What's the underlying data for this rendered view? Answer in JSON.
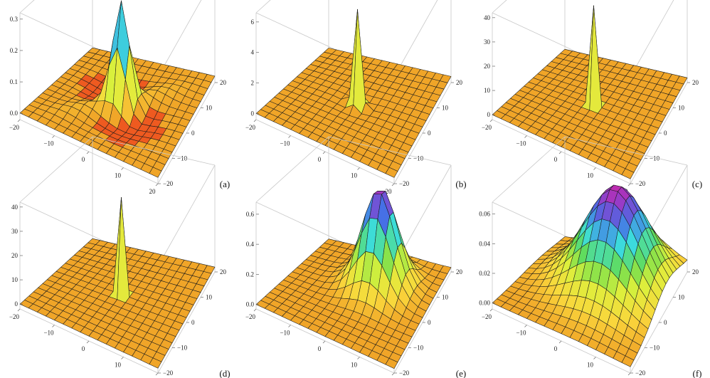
{
  "chart_data": [
    {
      "type": "surface3d",
      "panel_label": "(a)",
      "x_range": [
        -20,
        20
      ],
      "y_range": [
        -20,
        20
      ],
      "z_ticks": [
        "0.0",
        "0.1",
        "0.2",
        "0.3"
      ],
      "z_range": [
        -0.02,
        0.32
      ],
      "x_ticks": [
        "-20",
        "-10",
        "0",
        "10",
        "20"
      ],
      "y_ticks": [
        "-20",
        "-10",
        "0",
        "10",
        "20"
      ],
      "surface": {
        "kind": "dipole",
        "peak": 0.32,
        "width": 2.5,
        "dip": -0.025,
        "dip_width": 6
      }
    },
    {
      "type": "surface3d",
      "panel_label": "(b)",
      "x_range": [
        -20,
        20
      ],
      "y_range": [
        -20,
        20
      ],
      "z_ticks": [
        "0",
        "2",
        "4",
        "6"
      ],
      "z_range": [
        -0.4,
        6.6
      ],
      "x_ticks": [
        "-20",
        "-10",
        "0",
        "10",
        "20"
      ],
      "y_ticks": [
        "-20",
        "-10",
        "0",
        "10",
        "20"
      ],
      "surface": {
        "kind": "spike",
        "peak": 6.5,
        "width": 1.1,
        "dip": -0.3,
        "dip_width": 3
      }
    },
    {
      "type": "surface3d",
      "panel_label": "(c)",
      "x_range": [
        -20,
        20
      ],
      "y_range": [
        -20,
        20
      ],
      "z_ticks": [
        "0",
        "10",
        "20",
        "30",
        "40"
      ],
      "z_range": [
        -2,
        42
      ],
      "x_ticks": [
        "-20",
        "-10",
        "0",
        "10",
        "20"
      ],
      "y_ticks": [
        "-20",
        "-10",
        "0",
        "10",
        "20"
      ],
      "surface": {
        "kind": "spike",
        "peak": 41,
        "width": 0.7,
        "dip": 0,
        "dip_width": 2
      }
    },
    {
      "type": "surface3d",
      "panel_label": "(d)",
      "x_range": [
        -20,
        20
      ],
      "y_range": [
        -20,
        20
      ],
      "z_ticks": [
        "0",
        "10",
        "20",
        "30",
        "40"
      ],
      "z_range": [
        -2,
        42
      ],
      "x_ticks": [
        "-20",
        "-10",
        "0",
        "10",
        "20"
      ],
      "y_ticks": [
        "-20",
        "-10",
        "0",
        "10",
        "20"
      ],
      "surface": {
        "kind": "spike",
        "peak": 40,
        "width": 0.7,
        "dip": 0,
        "dip_width": 2
      }
    },
    {
      "type": "surface3d",
      "panel_label": "(e)",
      "x_range": [
        -20,
        20
      ],
      "y_range": [
        -20,
        20
      ],
      "z_ticks": [
        "0.0",
        "0.2",
        "0.4",
        "0.6"
      ],
      "z_range": [
        -0.03,
        0.68
      ],
      "x_ticks": [
        "-20",
        "-10",
        "0",
        "10",
        "20"
      ],
      "y_ticks": [
        "-20",
        "-10",
        "0",
        "10",
        "20"
      ],
      "surface": {
        "kind": "lump",
        "peak": 0.66,
        "width": 5,
        "dip": 0,
        "dip_width": 8
      }
    },
    {
      "type": "surface3d",
      "panel_label": "(f)",
      "x_range": [
        -20,
        20
      ],
      "y_range": [
        -20,
        20
      ],
      "z_ticks": [
        "0.00",
        "0.02",
        "0.04",
        "0.06"
      ],
      "z_range": [
        -0.004,
        0.068
      ],
      "x_ticks": [
        "-20",
        "-10",
        "0",
        "10",
        "20"
      ],
      "y_ticks": [
        "-20",
        "-10",
        "0",
        "10",
        "20"
      ],
      "surface": {
        "kind": "lump",
        "peak": 0.066,
        "width": 9,
        "dip": 0,
        "dip_width": 10
      }
    }
  ]
}
